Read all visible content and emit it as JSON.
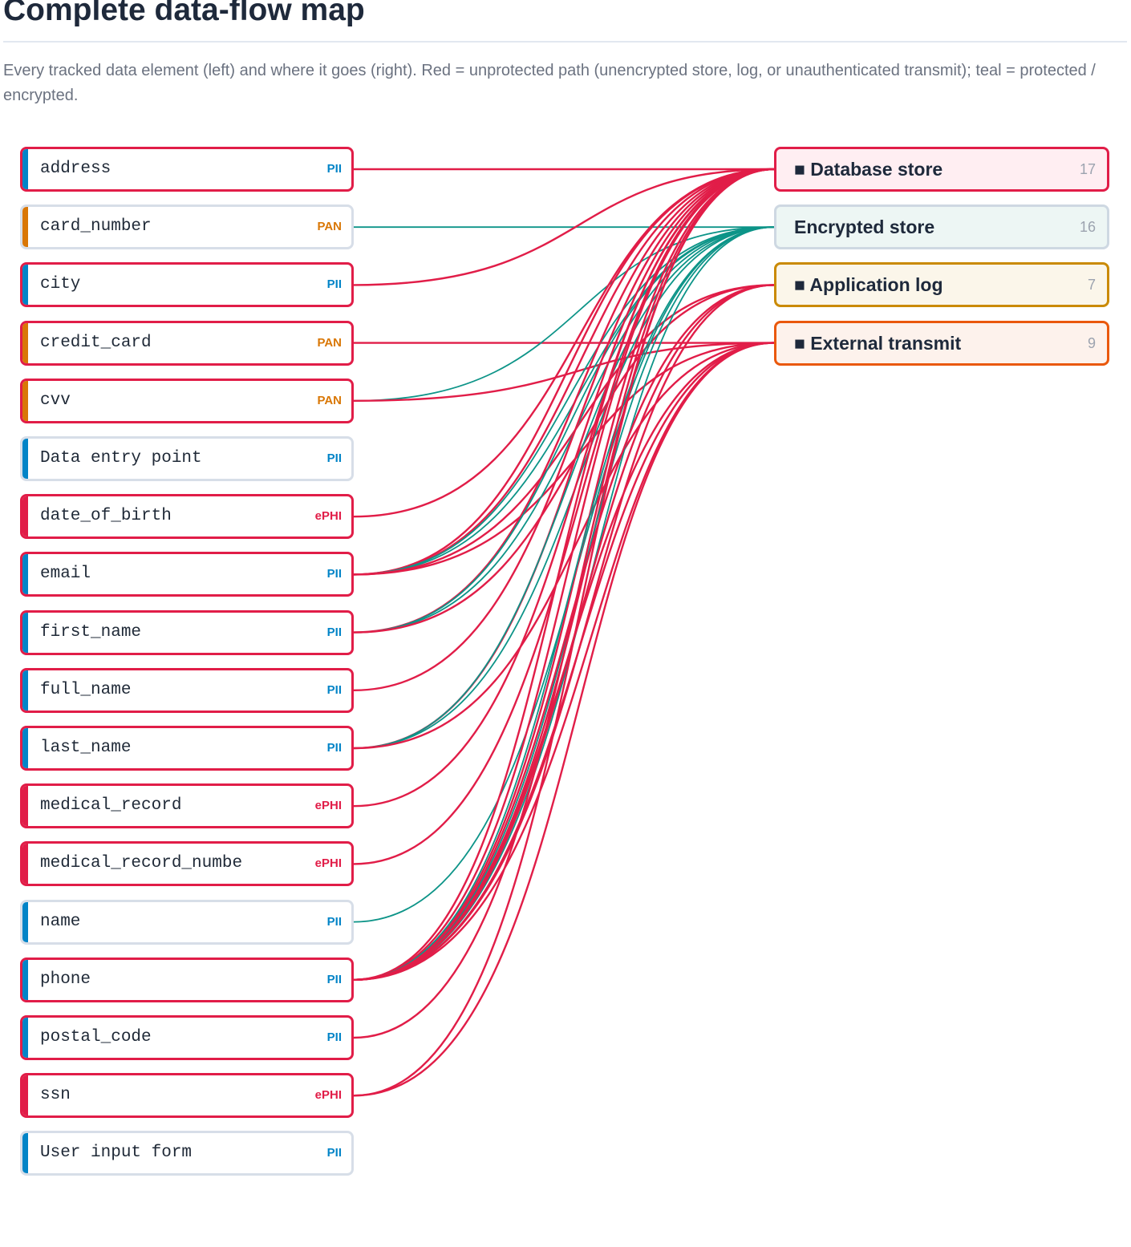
{
  "title": "Complete data-flow map",
  "subtitle": "Every tracked data element (left) and where it goes (right). Red = unprotected path (unencrypted store, log, or unauthenticated transmit); teal = protected / encrypted.",
  "colors": {
    "unprotected": "#e11d48",
    "protected": "#0d9488",
    "pii": "#0284c7",
    "pan": "#d97706",
    "ephi": "#e11d48",
    "neutral_border": "#d7dee8"
  },
  "destinations": [
    {
      "id": "db",
      "label": "■ Database store",
      "count": "17",
      "border": "#e11d48",
      "bg": "#ffeef2",
      "protected": false
    },
    {
      "id": "enc",
      "label": "Encrypted store",
      "count": "16",
      "border": "#ced8e2",
      "bg": "#edf6f4",
      "protected": true
    },
    {
      "id": "log",
      "label": "■ Application log",
      "count": "7",
      "border": "#ca8a04",
      "bg": "#fbf6ea",
      "protected": false
    },
    {
      "id": "ext",
      "label": "■ External transmit",
      "count": "9",
      "border": "#ea580c",
      "bg": "#fdf2ec",
      "protected": false
    }
  ],
  "sources": [
    {
      "name": "address",
      "tag": "PII",
      "flagged": true,
      "flows": [
        "db"
      ]
    },
    {
      "name": "card_number",
      "tag": "PAN",
      "flagged": false,
      "flows": [
        "enc"
      ]
    },
    {
      "name": "city",
      "tag": "PII",
      "flagged": true,
      "flows": [
        "db"
      ]
    },
    {
      "name": "credit_card",
      "tag": "PAN",
      "flagged": true,
      "flows": [
        "ext"
      ]
    },
    {
      "name": "cvv",
      "tag": "PAN",
      "flagged": true,
      "flows": [
        "enc",
        "ext"
      ]
    },
    {
      "name": "Data entry point",
      "tag": "PII",
      "flagged": false,
      "flows": []
    },
    {
      "name": "date_of_birth",
      "tag": "ePHI",
      "flagged": true,
      "flows": [
        "db"
      ]
    },
    {
      "name": "email",
      "tag": "PII",
      "flagged": true,
      "flows": [
        "db",
        "db",
        "enc",
        "enc",
        "log",
        "ext"
      ]
    },
    {
      "name": "first_name",
      "tag": "PII",
      "flagged": true,
      "flows": [
        "db",
        "enc",
        "enc",
        "log"
      ]
    },
    {
      "name": "full_name",
      "tag": "PII",
      "flagged": true,
      "flows": [
        "db"
      ]
    },
    {
      "name": "last_name",
      "tag": "PII",
      "flagged": true,
      "flows": [
        "db",
        "enc",
        "enc",
        "ext"
      ]
    },
    {
      "name": "medical_record",
      "tag": "ePHI",
      "flagged": true,
      "flows": [
        "db"
      ]
    },
    {
      "name": "medical_record_numbe",
      "tag": "ePHI",
      "flagged": true,
      "flows": [
        "db"
      ]
    },
    {
      "name": "name",
      "tag": "PII",
      "flagged": false,
      "flows": [
        "enc"
      ]
    },
    {
      "name": "phone",
      "tag": "PII",
      "flagged": true,
      "flows": [
        "db",
        "db",
        "db",
        "db",
        "enc",
        "enc",
        "enc",
        "log",
        "log",
        "log",
        "ext",
        "ext",
        "ext"
      ]
    },
    {
      "name": "postal_code",
      "tag": "PII",
      "flagged": true,
      "flows": [
        "db"
      ]
    },
    {
      "name": "ssn",
      "tag": "ePHI",
      "flagged": true,
      "flows": [
        "db",
        "ext"
      ]
    },
    {
      "name": "User input form",
      "tag": "PII",
      "flagged": false,
      "flows": []
    }
  ]
}
